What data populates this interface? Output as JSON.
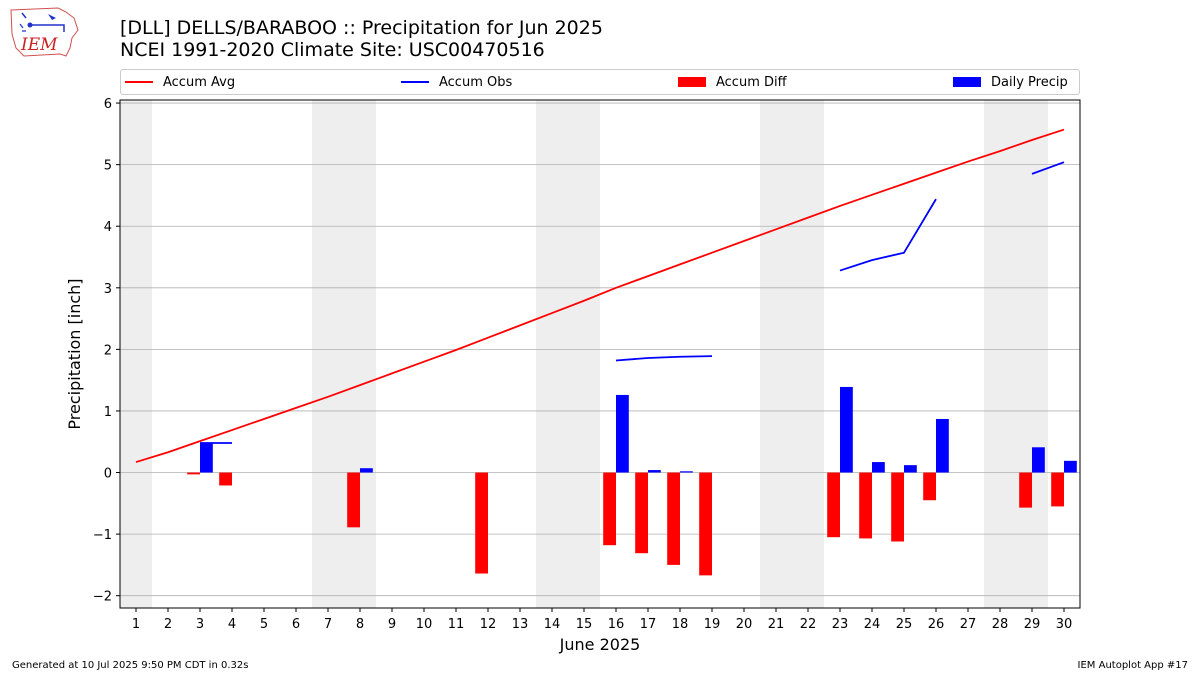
{
  "header": {
    "title_line1": "[DLL] DELLS/BARABOO :: Precipitation for Jun 2025",
    "title_line2": "NCEI 1991-2020 Climate Site: USC00470516",
    "logo_text": "IEM"
  },
  "legend": {
    "accum_avg": "Accum Avg",
    "accum_obs": "Accum Obs",
    "accum_diff": "Accum Diff",
    "daily_precip": "Daily Precip"
  },
  "footer": {
    "generated": "Generated at 10 Jul 2025 9:50 PM CDT in 0.32s",
    "app": "IEM Autoplot App #17"
  },
  "colors": {
    "accum_avg": "#ff0000",
    "accum_obs": "#0000ff",
    "accum_diff": "#ff0000",
    "daily_precip": "#0000ff",
    "weekend_shade": "#eeeeee",
    "grid": "#b0b0b0"
  },
  "chart_data": {
    "type": "bar",
    "xlabel": "June 2025",
    "ylabel": "Precipitation [inch]",
    "xlim": [
      0.5,
      30.5
    ],
    "ylim": [
      -2.2,
      6.05
    ],
    "yticks": [
      -2,
      -1,
      0,
      1,
      2,
      3,
      4,
      5,
      6
    ],
    "ytick_labels": [
      "−2",
      "−1",
      "0",
      "1",
      "2",
      "3",
      "4",
      "5",
      "6"
    ],
    "xticks": [
      1,
      2,
      3,
      4,
      5,
      6,
      7,
      8,
      9,
      10,
      11,
      12,
      13,
      14,
      15,
      16,
      17,
      18,
      19,
      20,
      21,
      22,
      23,
      24,
      25,
      26,
      27,
      28,
      29,
      30
    ],
    "grid": "horizontal",
    "legend_position": "top",
    "weekend_days": [
      1,
      7,
      8,
      14,
      15,
      21,
      22,
      28,
      29
    ],
    "days": [
      1,
      2,
      3,
      4,
      5,
      6,
      7,
      8,
      9,
      10,
      11,
      12,
      13,
      14,
      15,
      16,
      17,
      18,
      19,
      20,
      21,
      22,
      23,
      24,
      25,
      26,
      27,
      28,
      29,
      30
    ],
    "series": [
      {
        "name": "Accum Avg",
        "kind": "line",
        "values": [
          0.17,
          0.33,
          0.51,
          0.69,
          0.87,
          1.05,
          1.23,
          1.42,
          1.61,
          1.8,
          1.99,
          2.19,
          2.39,
          2.59,
          2.79,
          3.0,
          3.19,
          3.38,
          3.57,
          3.76,
          3.95,
          4.14,
          4.33,
          4.51,
          4.69,
          4.87,
          5.05,
          5.22,
          5.4,
          5.57
        ]
      },
      {
        "name": "Accum Obs",
        "kind": "line",
        "values": [
          null,
          null,
          0.48,
          0.48,
          null,
          null,
          null,
          null,
          null,
          null,
          null,
          null,
          null,
          null,
          null,
          1.82,
          1.86,
          1.88,
          1.89,
          null,
          null,
          null,
          3.28,
          3.45,
          3.57,
          4.44,
          null,
          null,
          4.85,
          5.04
        ]
      },
      {
        "name": "Accum Diff",
        "kind": "bar",
        "values": [
          null,
          null,
          -0.03,
          -0.21,
          null,
          null,
          null,
          -0.89,
          null,
          null,
          null,
          -1.64,
          null,
          null,
          null,
          -1.18,
          -1.31,
          -1.5,
          -1.67,
          null,
          null,
          null,
          -1.05,
          -1.07,
          -1.12,
          -0.45,
          null,
          null,
          -0.57,
          -0.55
        ]
      },
      {
        "name": "Daily Precip",
        "kind": "bar",
        "values": [
          null,
          null,
          0.48,
          null,
          null,
          null,
          null,
          0.07,
          null,
          null,
          null,
          null,
          null,
          null,
          null,
          1.26,
          0.04,
          0.02,
          null,
          null,
          null,
          null,
          1.39,
          0.17,
          0.12,
          0.87,
          null,
          null,
          0.41,
          0.19
        ]
      }
    ]
  }
}
